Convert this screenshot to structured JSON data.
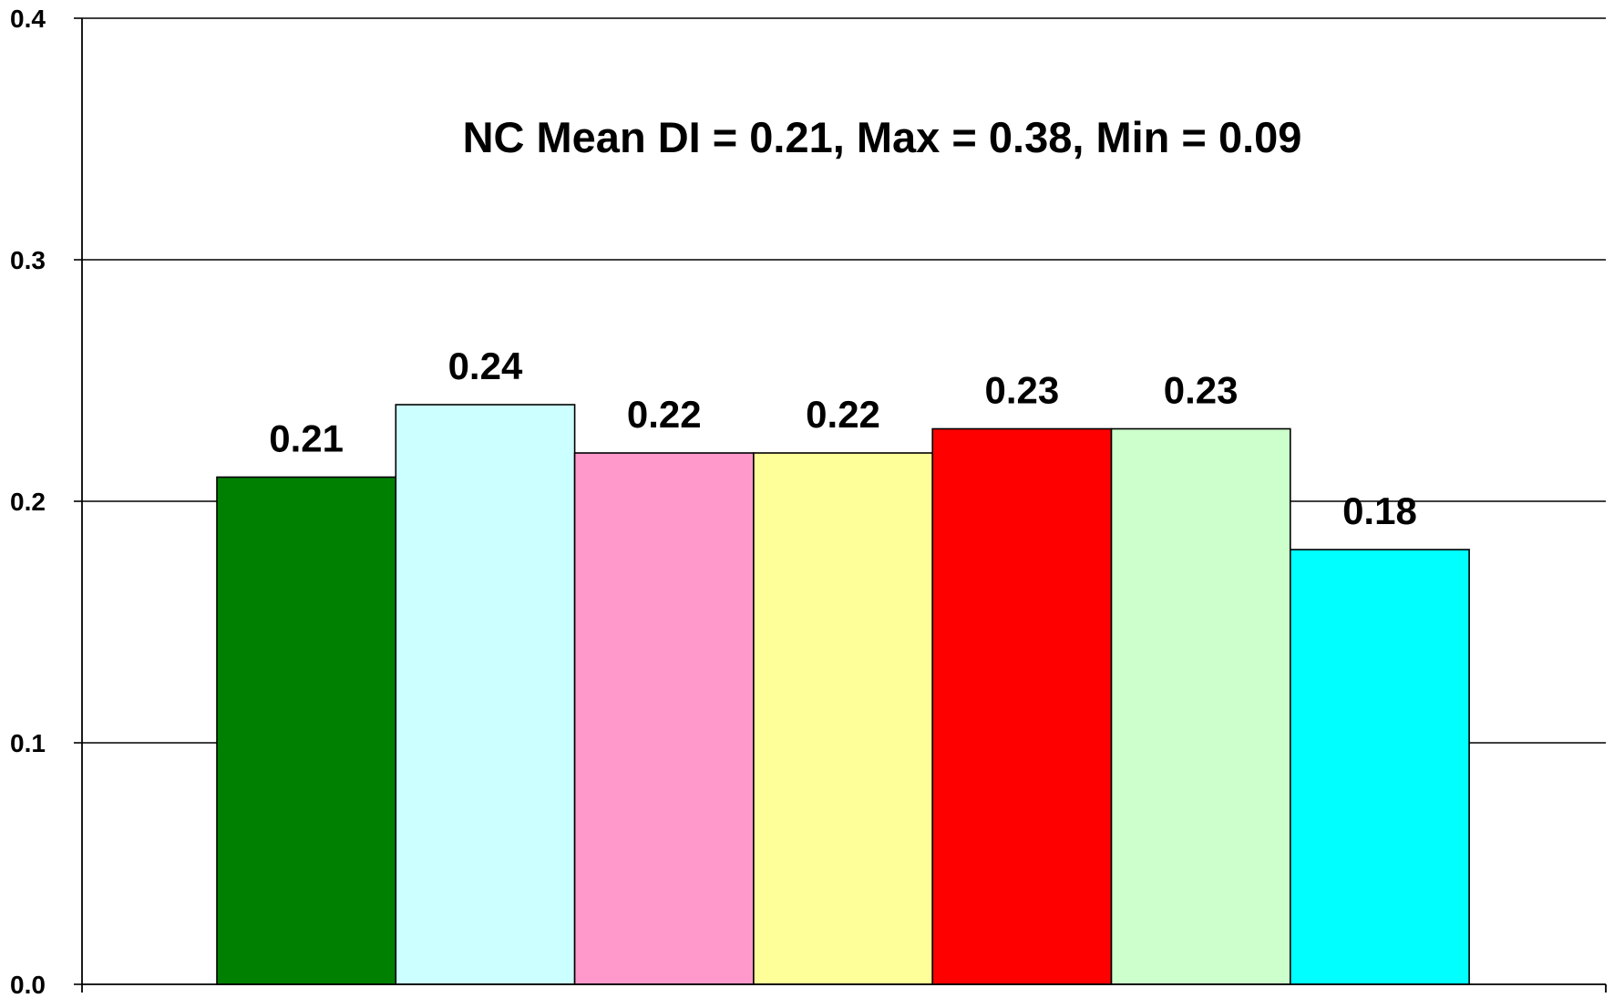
{
  "chart_data": {
    "type": "bar",
    "title": "",
    "xlabel": "",
    "ylabel": "",
    "annotation": "NC Mean DI = 0.21, Max = 0.38, Min = 0.09",
    "ylim": [
      0,
      0.4
    ],
    "yticks": [
      "0.0",
      "0.1",
      "0.2",
      "0.3",
      "0.4"
    ],
    "grid": "horizontal",
    "legend": "none",
    "categories": [
      "",
      "",
      "",
      "",
      "",
      "",
      ""
    ],
    "values": [
      0.21,
      0.24,
      0.22,
      0.22,
      0.23,
      0.23,
      0.18
    ],
    "value_labels": [
      "0.21",
      "0.24",
      "0.22",
      "0.22",
      "0.23",
      "0.23",
      "0.18"
    ],
    "colors": [
      "#008000",
      "#ccffff",
      "#ff99cc",
      "#ffff99",
      "#ff0000",
      "#ccffcc",
      "#00ffff"
    ]
  }
}
